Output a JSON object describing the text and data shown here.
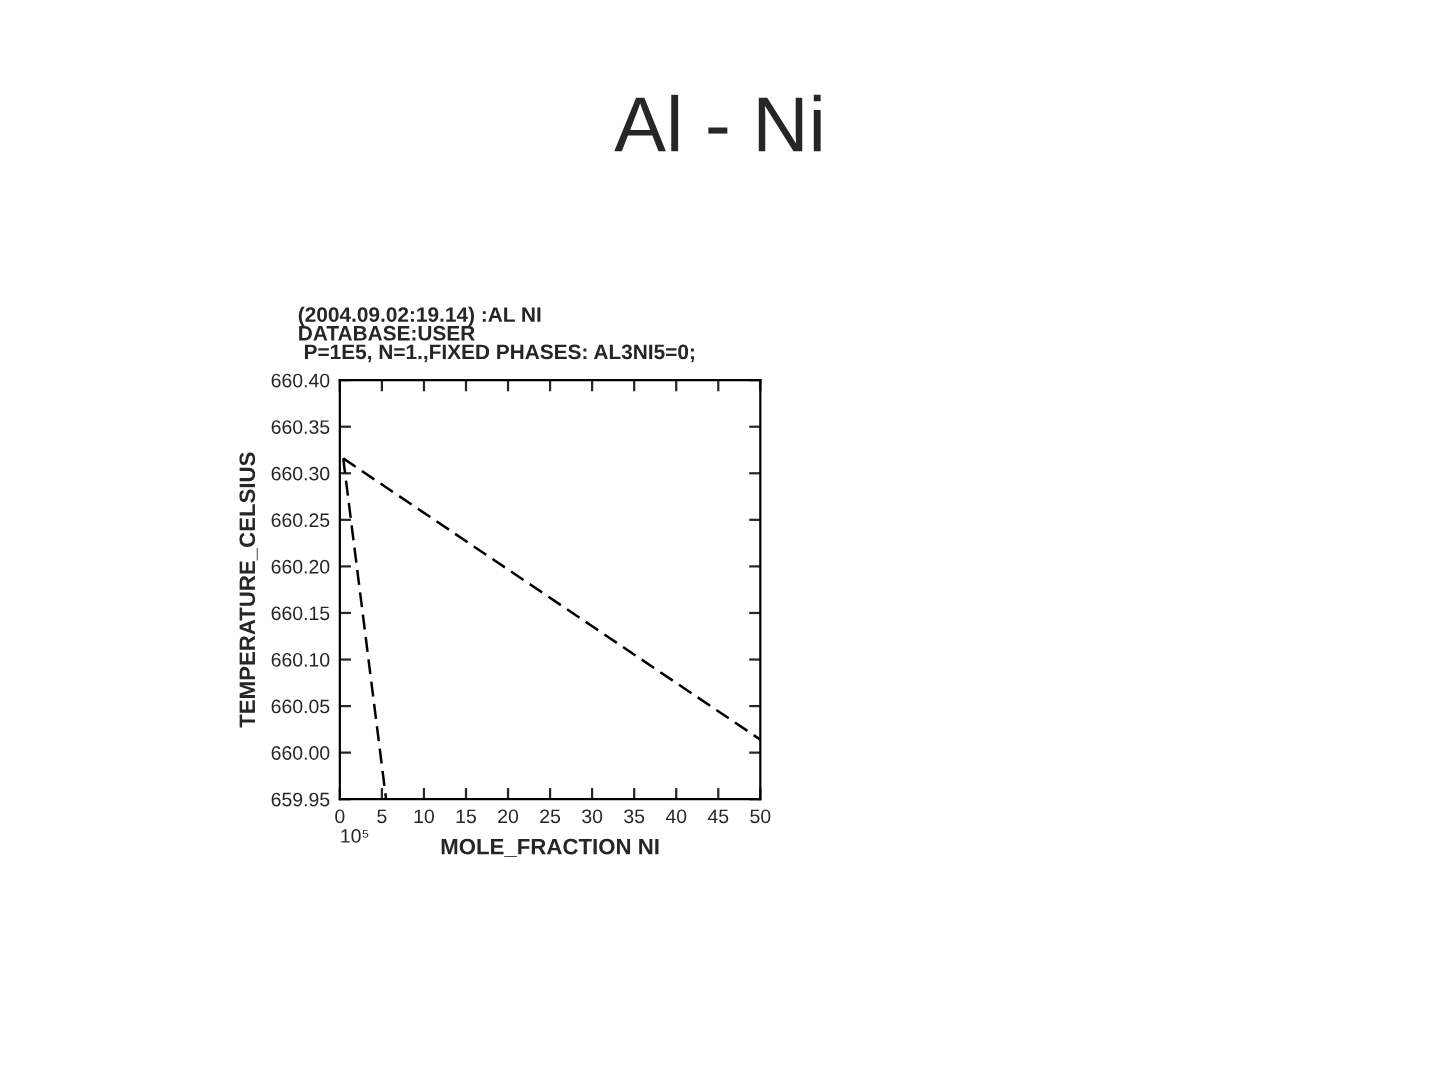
{
  "chart_data": {
    "type": "line",
    "title": "Al - Ni",
    "subtitle": "(2004.09.02:19.14) :AL NI\nDATABASE:USER\n P=1E5, N=1.,FIXED PHASES: AL3NI5=0;",
    "xlabel": "MOLE_FRACTION NI",
    "ylabel": "TEMPERATURE_CELSIUS",
    "annotations": [
      "10⁵"
    ],
    "series": [
      {
        "color": "#000000",
        "x": [
          0.4,
          50
        ],
        "values": [
          660.316,
          660.014
        ]
      },
      {
        "color": "#000000",
        "x": [
          0.4,
          5.5
        ],
        "values": [
          660.316,
          659.95
        ]
      }
    ],
    "xlim": [
      0,
      50
    ],
    "xticks": [
      0,
      5,
      10,
      15,
      20,
      25,
      30,
      35,
      40,
      45,
      50
    ],
    "ylim": [
      659.95,
      660.4
    ],
    "yticks": [
      {
        "value": 659.95,
        "label": "659.95"
      },
      {
        "value": 660.0,
        "label": "660.00"
      },
      {
        "value": 660.05,
        "label": "660.05"
      },
      {
        "value": 660.1,
        "label": "660.10"
      },
      {
        "value": 660.15,
        "label": "660.15"
      },
      {
        "value": 660.2,
        "label": "660.20"
      },
      {
        "value": 660.25,
        "label": "660.25"
      },
      {
        "value": 660.3,
        "label": "660.30"
      },
      {
        "value": 660.35,
        "label": "660.35"
      },
      {
        "value": 660.4,
        "label": "660.40"
      }
    ],
    "grid": false,
    "legend": false,
    "line_style": "dashed"
  }
}
